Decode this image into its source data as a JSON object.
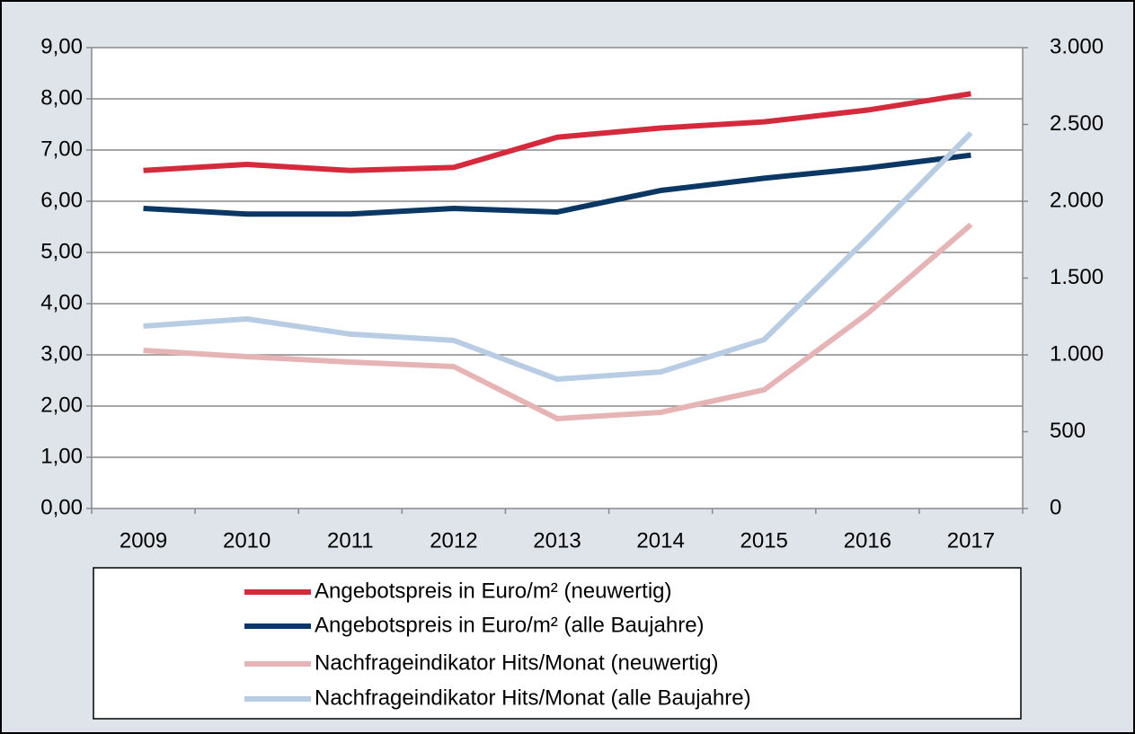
{
  "chart_data": {
    "type": "line",
    "categories": [
      "2009",
      "2010",
      "2011",
      "2012",
      "2013",
      "2014",
      "2015",
      "2016",
      "2017"
    ],
    "ylim": [
      0,
      9
    ],
    "yticks": [
      {
        "value": 0,
        "label": "0,00"
      },
      {
        "value": 1,
        "label": "1,00"
      },
      {
        "value": 2,
        "label": "2,00"
      },
      {
        "value": 3,
        "label": "3,00"
      },
      {
        "value": 4,
        "label": "4,00"
      },
      {
        "value": 5,
        "label": "5,00"
      },
      {
        "value": 6,
        "label": "6,00"
      },
      {
        "value": 7,
        "label": "7,00"
      },
      {
        "value": 8,
        "label": "8,00"
      },
      {
        "value": 9,
        "label": "9,00"
      }
    ],
    "y2lim": [
      0,
      3000
    ],
    "y2ticks": [
      0,
      500,
      {
        "value": 1000,
        "label": "1.000"
      },
      {
        "value": 1500,
        "label": "1.500"
      },
      {
        "value": 2000,
        "label": "2.000"
      },
      {
        "value": 2500,
        "label": "2.500"
      },
      {
        "value": 3000,
        "label": "3.000"
      }
    ],
    "grid": true,
    "legend": "bottom",
    "series": [
      {
        "name": "Angebotspreis in Euro/m² (neuwertig)",
        "color": "#d42a3c",
        "values": [
          6.6,
          6.72,
          6.6,
          6.66,
          7.25,
          7.43,
          7.55,
          7.78,
          8.1
        ]
      },
      {
        "name": "Angebotspreis in Euro/m² (alle Baujahre)",
        "color": "#0b3764",
        "values": [
          5.86,
          5.75,
          5.75,
          5.86,
          5.79,
          6.21,
          6.45,
          6.65,
          6.9
        ]
      },
      {
        "name": "Nachfrageindikator Hits/Monat (neuwertig)",
        "color": "#e6b4b4",
        "axis": "y2",
        "values": [
          1029,
          988,
          953,
          924,
          585,
          626,
          772,
          1269,
          1848
        ]
      },
      {
        "name": "Nachfrageindikator Hits/Monat (alle Baujahre)",
        "color": "#b8cde4",
        "axis": "y2",
        "values": [
          1187,
          1234,
          1135,
          1094,
          842,
          889,
          1099,
          1760,
          2444
        ]
      }
    ]
  }
}
